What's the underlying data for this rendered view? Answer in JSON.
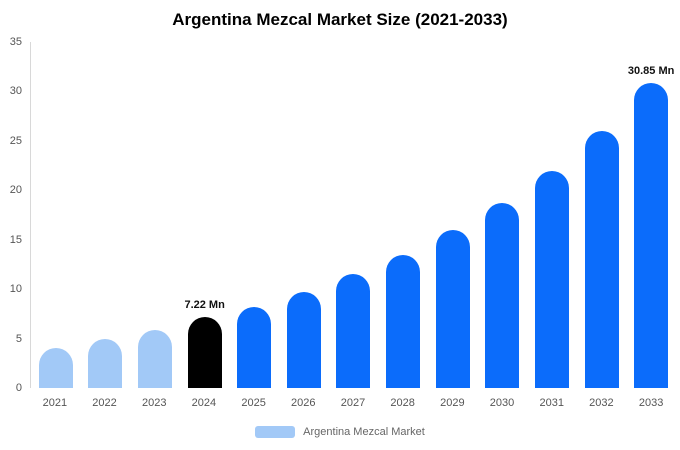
{
  "chart_data": {
    "type": "bar",
    "title": "Argentina Mezcal Market Size (2021-2033)",
    "categories": [
      "2021",
      "2022",
      "2023",
      "2024",
      "2025",
      "2026",
      "2027",
      "2028",
      "2029",
      "2030",
      "2031",
      "2032",
      "2033"
    ],
    "series": [
      {
        "name": "Argentina Mezcal Market",
        "values": [
          4.0,
          5.0,
          5.9,
          7.22,
          8.2,
          9.7,
          11.5,
          13.5,
          16.0,
          18.7,
          22.0,
          26.0,
          30.85
        ]
      }
    ],
    "unit": "Mn",
    "xlabel": "",
    "ylabel": "",
    "ylim": [
      0,
      35
    ],
    "yticks": [
      0,
      5,
      10,
      15,
      20,
      25,
      30,
      35
    ],
    "grid": false,
    "legend_position": "bottom",
    "bar_colors": [
      "#a2c9f7",
      "#a2c9f7",
      "#a2c9f7",
      "#000000",
      "#0b6cfb",
      "#0b6cfb",
      "#0b6cfb",
      "#0b6cfb",
      "#0b6cfb",
      "#0b6cfb",
      "#0b6cfb",
      "#0b6cfb",
      "#0b6cfb"
    ],
    "annotations": [
      {
        "category": "2024",
        "text": "7.22 Mn"
      },
      {
        "category": "2033",
        "text": "30.85 Mn"
      }
    ]
  },
  "legend": {
    "label": "Argentina Mezcal Market",
    "swatch_color": "#a2c9f7"
  },
  "colors": {
    "primary_blue": "#0b6cfb",
    "light_blue": "#a2c9f7",
    "highlight_black": "#000000",
    "axis_text": "#555555",
    "title_text": "#000000"
  }
}
